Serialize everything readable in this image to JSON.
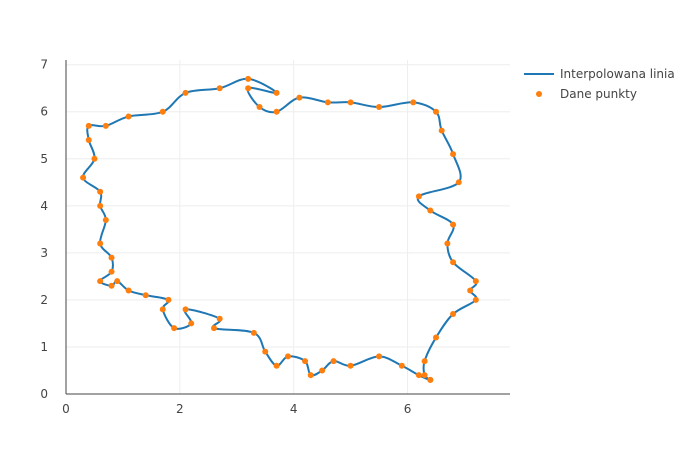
{
  "colors": {
    "line": "#1f77b4",
    "points": "#ff7f0e",
    "grid": "#eeeeee",
    "axis": "#444444"
  },
  "chart_data": {
    "type": "line",
    "xlim": [
      0,
      7.8
    ],
    "ylim": [
      0,
      7.1
    ],
    "xticks": [
      0,
      2,
      4,
      6
    ],
    "yticks": [
      0,
      1,
      2,
      3,
      4,
      5,
      6,
      7
    ],
    "xtick_labels": [
      "0",
      "2",
      "4",
      "6"
    ],
    "ytick_labels": [
      "0",
      "1",
      "2",
      "3",
      "4",
      "5",
      "6",
      "7"
    ],
    "grid": true,
    "legend_position": "top-right",
    "series": [
      {
        "name": "Interpolowana linia",
        "kind": "line",
        "color": "#1f77b4"
      },
      {
        "name": "Dane punkty",
        "kind": "markers",
        "color": "#ff7f0e"
      }
    ],
    "points": [
      [
        6.4,
        0.3
      ],
      [
        6.3,
        0.4
      ],
      [
        6.3,
        0.7
      ],
      [
        6.5,
        1.2
      ],
      [
        6.8,
        1.7
      ],
      [
        7.2,
        2.0
      ],
      [
        7.1,
        2.2
      ],
      [
        7.2,
        2.4
      ],
      [
        6.8,
        2.8
      ],
      [
        6.7,
        3.2
      ],
      [
        6.8,
        3.6
      ],
      [
        6.4,
        3.9
      ],
      [
        6.2,
        4.2
      ],
      [
        6.9,
        4.5
      ],
      [
        6.8,
        5.1
      ],
      [
        6.6,
        5.6
      ],
      [
        6.5,
        6.0
      ],
      [
        6.1,
        6.2
      ],
      [
        5.5,
        6.1
      ],
      [
        5.0,
        6.2
      ],
      [
        4.6,
        6.2
      ],
      [
        4.1,
        6.3
      ],
      [
        3.7,
        6.0
      ],
      [
        3.4,
        6.1
      ],
      [
        3.2,
        6.5
      ],
      [
        3.7,
        6.4
      ],
      [
        3.2,
        6.7
      ],
      [
        2.7,
        6.5
      ],
      [
        2.1,
        6.4
      ],
      [
        1.7,
        6.0
      ],
      [
        1.1,
        5.9
      ],
      [
        0.7,
        5.7
      ],
      [
        0.4,
        5.7
      ],
      [
        0.4,
        5.4
      ],
      [
        0.5,
        5.0
      ],
      [
        0.3,
        4.6
      ],
      [
        0.6,
        4.3
      ],
      [
        0.6,
        4.0
      ],
      [
        0.7,
        3.7
      ],
      [
        0.6,
        3.2
      ],
      [
        0.8,
        2.9
      ],
      [
        0.8,
        2.6
      ],
      [
        0.6,
        2.4
      ],
      [
        0.8,
        2.3
      ],
      [
        0.9,
        2.4
      ],
      [
        1.1,
        2.2
      ],
      [
        1.4,
        2.1
      ],
      [
        1.8,
        2.0
      ],
      [
        1.7,
        1.8
      ],
      [
        1.9,
        1.4
      ],
      [
        2.2,
        1.5
      ],
      [
        2.1,
        1.8
      ],
      [
        2.7,
        1.6
      ],
      [
        2.6,
        1.4
      ],
      [
        3.3,
        1.3
      ],
      [
        3.5,
        0.9
      ],
      [
        3.7,
        0.6
      ],
      [
        3.9,
        0.8
      ],
      [
        4.2,
        0.7
      ],
      [
        4.3,
        0.4
      ],
      [
        4.5,
        0.5
      ],
      [
        4.7,
        0.7
      ],
      [
        5.0,
        0.6
      ],
      [
        5.5,
        0.8
      ],
      [
        5.9,
        0.6
      ],
      [
        6.2,
        0.4
      ],
      [
        6.4,
        0.3
      ]
    ]
  }
}
